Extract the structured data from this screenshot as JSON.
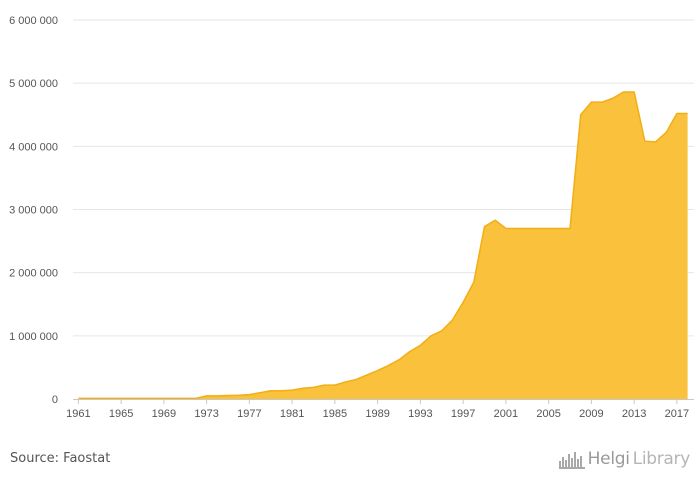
{
  "chart_data": {
    "type": "area",
    "title": "",
    "xlabel": "",
    "ylabel": "",
    "fill_color": "#F9C13C",
    "line_color": "#F2AE14",
    "xlim": [
      1960.5,
      2018.6
    ],
    "ylim": [
      0,
      6000000
    ],
    "y_ticks": [
      0,
      1000000,
      2000000,
      3000000,
      4000000,
      5000000,
      6000000
    ],
    "y_tick_labels": [
      "0",
      "1 000 000",
      "2 000 000",
      "3 000 000",
      "4 000 000",
      "5 000 000",
      "6 000 000"
    ],
    "x_ticks": [
      1961,
      1965,
      1969,
      1973,
      1977,
      1981,
      1985,
      1989,
      1993,
      1997,
      2001,
      2005,
      2009,
      2013,
      2017
    ],
    "x_tick_labels": [
      "1961",
      "1965",
      "1969",
      "1973",
      "1977",
      "1981",
      "1985",
      "1989",
      "1993",
      "1997",
      "2001",
      "2005",
      "2009",
      "2013",
      "2017"
    ],
    "grid": true,
    "x": [
      1961,
      1962,
      1963,
      1964,
      1965,
      1966,
      1967,
      1968,
      1969,
      1970,
      1971,
      1972,
      1973,
      1974,
      1975,
      1976,
      1977,
      1978,
      1979,
      1980,
      1981,
      1982,
      1983,
      1984,
      1985,
      1986,
      1987,
      1988,
      1989,
      1990,
      1991,
      1992,
      1993,
      1994,
      1995,
      1996,
      1997,
      1998,
      1999,
      2000,
      2001,
      2002,
      2003,
      2004,
      2005,
      2006,
      2007,
      2008,
      2009,
      2010,
      2011,
      2012,
      2013,
      2014,
      2015,
      2016,
      2017,
      2018
    ],
    "values": [
      10000,
      10000,
      10000,
      10000,
      10000,
      10000,
      10000,
      10000,
      10000,
      10000,
      10000,
      10000,
      50000,
      50000,
      55000,
      60000,
      70000,
      100000,
      130000,
      130000,
      140000,
      170000,
      185000,
      220000,
      220000,
      270000,
      310000,
      380000,
      450000,
      530000,
      620000,
      750000,
      850000,
      1000000,
      1080000,
      1250000,
      1530000,
      1850000,
      2730000,
      2830000,
      2700000,
      2700000,
      2700000,
      2700000,
      2700000,
      2700000,
      2700000,
      4500000,
      4700000,
      4700000,
      4760000,
      4860000,
      4860000,
      4080000,
      4070000,
      4220000,
      4520000,
      4520000
    ]
  },
  "footer": {
    "source": "Source: Faostat",
    "brand_main": "Helgi",
    "brand_suffix": "Library",
    "brand_icon": "helgi-skyline-icon"
  }
}
